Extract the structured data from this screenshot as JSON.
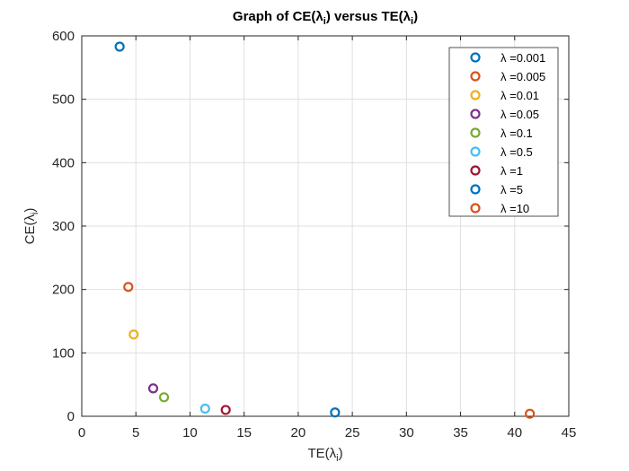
{
  "chart_data": {
    "type": "scatter",
    "title": {
      "base1": "Graph of CE(λ",
      "sub1": "i",
      "mid": ") versus TE(λ",
      "sub2": "i",
      "end": ")"
    },
    "xlabel": {
      "base": "TE(λ",
      "sub": "i",
      "end": ")"
    },
    "ylabel": {
      "base": "CE(λ",
      "sub": "i",
      "end": ")"
    },
    "xlim": [
      0,
      45
    ],
    "ylim": [
      0,
      600
    ],
    "xticks": [
      0,
      5,
      10,
      15,
      20,
      25,
      30,
      35,
      40,
      45
    ],
    "yticks": [
      0,
      100,
      200,
      300,
      400,
      500,
      600
    ],
    "grid": true,
    "legend_position": "top-right",
    "series": [
      {
        "name": "λ =0.001",
        "x": 23.4,
        "y": 6,
        "color": "#0072BD"
      },
      {
        "name": "λ =0.005",
        "x": 41.4,
        "y": 4,
        "color": "#D95319"
      },
      {
        "name": "λ =0.01",
        "x": 4.8,
        "y": 129,
        "color": "#EDB120"
      },
      {
        "name": "λ =0.05",
        "x": 6.6,
        "y": 44,
        "color": "#7E2F8E"
      },
      {
        "name": "λ =0.1",
        "x": 7.6,
        "y": 30,
        "color": "#77AC30"
      },
      {
        "name": "λ =0.5",
        "x": 11.4,
        "y": 12,
        "color": "#4DBEEE"
      },
      {
        "name": "λ =1",
        "x": 13.3,
        "y": 10,
        "color": "#A2142F"
      },
      {
        "name": "λ =5",
        "x": 3.5,
        "y": 583,
        "color": "#0072BD"
      },
      {
        "name": "λ =10",
        "x": 4.3,
        "y": 204,
        "color": "#D95319"
      }
    ]
  }
}
